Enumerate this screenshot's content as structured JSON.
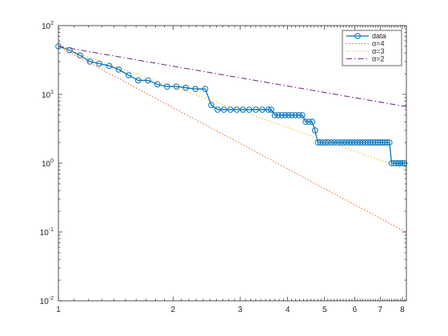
{
  "chart_data": {
    "type": "line",
    "xscale": "log",
    "yscale": "log",
    "xlim": [
      1,
      8.2
    ],
    "ylim": [
      0.01,
      100
    ],
    "grid": false,
    "legend_placement": "top-right",
    "x_ticks": [
      {
        "value": 1,
        "label": "1"
      },
      {
        "value": 2,
        "label": "2"
      },
      {
        "value": 3,
        "label": "3"
      },
      {
        "value": 4,
        "label": "4"
      },
      {
        "value": 5,
        "label": "5"
      },
      {
        "value": 6,
        "label": "6"
      },
      {
        "value": 7,
        "label": "7"
      },
      {
        "value": 8,
        "label": "8"
      }
    ],
    "y_ticks": [
      {
        "value": 0.01,
        "base": "10",
        "exp": "-2"
      },
      {
        "value": 0.1,
        "base": "10",
        "exp": "-1"
      },
      {
        "value": 1,
        "base": "10",
        "exp": "0"
      },
      {
        "value": 10,
        "base": "10",
        "exp": "1"
      },
      {
        "value": 100,
        "base": "10",
        "exp": "2"
      }
    ],
    "series": [
      {
        "name": "data",
        "color": "#0072BD",
        "style": "solid-circles",
        "points": [
          [
            1.0,
            50
          ],
          [
            1.07,
            44
          ],
          [
            1.14,
            37
          ],
          [
            1.21,
            30
          ],
          [
            1.28,
            28
          ],
          [
            1.36,
            26
          ],
          [
            1.44,
            23
          ],
          [
            1.53,
            19
          ],
          [
            1.62,
            16
          ],
          [
            1.72,
            16
          ],
          [
            1.82,
            14
          ],
          [
            1.93,
            13
          ],
          [
            2.04,
            13
          ],
          [
            2.16,
            12.5
          ],
          [
            2.29,
            12
          ],
          [
            2.43,
            12
          ],
          [
            2.52,
            7
          ],
          [
            2.62,
            6
          ],
          [
            2.72,
            6
          ],
          [
            2.83,
            6
          ],
          [
            2.94,
            6
          ],
          [
            3.05,
            6
          ],
          [
            3.17,
            6
          ],
          [
            3.3,
            6
          ],
          [
            3.43,
            6
          ],
          [
            3.56,
            6
          ],
          [
            3.62,
            6
          ],
          [
            3.7,
            5
          ],
          [
            3.78,
            5
          ],
          [
            3.86,
            5
          ],
          [
            3.94,
            5
          ],
          [
            4.02,
            5
          ],
          [
            4.1,
            5
          ],
          [
            4.19,
            5
          ],
          [
            4.28,
            5
          ],
          [
            4.37,
            5
          ],
          [
            4.46,
            4
          ],
          [
            4.55,
            4
          ],
          [
            4.64,
            4
          ],
          [
            4.72,
            3
          ],
          [
            4.8,
            2
          ],
          [
            4.87,
            2
          ],
          [
            4.95,
            2
          ],
          [
            5.03,
            2
          ],
          [
            5.11,
            2
          ],
          [
            5.2,
            2
          ],
          [
            5.3,
            2
          ],
          [
            5.4,
            2
          ],
          [
            5.5,
            2
          ],
          [
            5.6,
            2
          ],
          [
            5.7,
            2
          ],
          [
            5.8,
            2
          ],
          [
            5.9,
            2
          ],
          [
            6.0,
            2
          ],
          [
            6.1,
            2
          ],
          [
            6.2,
            2
          ],
          [
            6.3,
            2
          ],
          [
            6.4,
            2
          ],
          [
            6.5,
            2
          ],
          [
            6.6,
            2
          ],
          [
            6.7,
            2
          ],
          [
            6.8,
            2
          ],
          [
            6.9,
            2
          ],
          [
            7.0,
            2
          ],
          [
            7.1,
            2
          ],
          [
            7.2,
            2
          ],
          [
            7.3,
            2
          ],
          [
            7.4,
            2
          ],
          [
            7.5,
            1
          ],
          [
            7.6,
            1
          ],
          [
            7.7,
            1
          ],
          [
            7.8,
            1
          ],
          [
            7.9,
            1
          ],
          [
            8.0,
            1
          ],
          [
            8.1,
            1
          ]
        ]
      },
      {
        "name": "α=4",
        "color": "#D95319",
        "style": "dotted",
        "points": [
          [
            1,
            50
          ],
          [
            8.2,
            0.0988
          ]
        ]
      },
      {
        "name": "α=3",
        "color": "#EDB120",
        "style": "dotted",
        "points": [
          [
            1,
            50
          ],
          [
            8.2,
            0.81
          ]
        ]
      },
      {
        "name": "α=2",
        "color": "#7E2F8E",
        "style": "dashdot",
        "points": [
          [
            1,
            50
          ],
          [
            8.2,
            6.64
          ]
        ]
      }
    ]
  }
}
